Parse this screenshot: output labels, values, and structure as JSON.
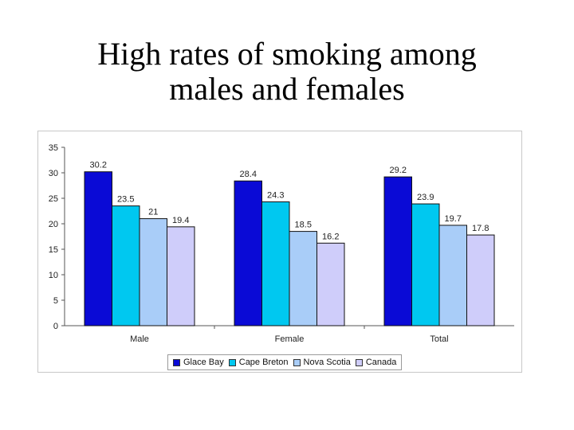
{
  "slide": {
    "title_line1": "High rates of smoking among",
    "title_line2": "males and females"
  },
  "chart_data": {
    "type": "bar",
    "categories": [
      "Male",
      "Female",
      "Total"
    ],
    "series": [
      {
        "name": "Glace Bay",
        "values": [
          30.2,
          28.4,
          29.2
        ],
        "color": "#0a0ad6"
      },
      {
        "name": "Cape Breton",
        "values": [
          23.5,
          24.3,
          23.9
        ],
        "color": "#00c8f0"
      },
      {
        "name": "Nova Scotia",
        "values": [
          21,
          18.5,
          19.7
        ],
        "color": "#a9cdf8"
      },
      {
        "name": "Canada",
        "values": [
          19.4,
          16.2,
          17.8
        ],
        "color": "#cfcdfa"
      }
    ],
    "ylim": [
      0,
      35
    ],
    "yticks": [
      0,
      5,
      10,
      15,
      20,
      25,
      30,
      35
    ],
    "title": "",
    "xlabel": "",
    "ylabel": "",
    "grid": false,
    "legend_position": "bottom"
  }
}
